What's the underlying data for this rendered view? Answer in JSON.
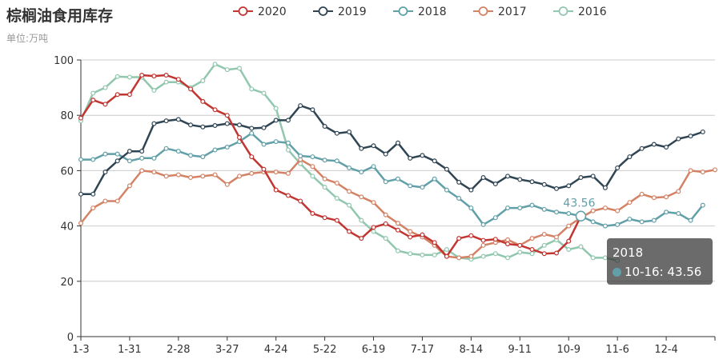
{
  "title": "棕榈油食用库存",
  "subtitle": "单位:万吨",
  "tooltip": {
    "title": "2018",
    "entry": "10-16: 43.56",
    "color": "#61a0a8"
  },
  "highlight_label": "43.56",
  "chart_data": {
    "type": "line",
    "title": "棕榈油食用库存",
    "ylabel": "单位:万吨",
    "xlabel": "",
    "ylim": [
      0,
      100
    ],
    "yticks": [
      0,
      20,
      40,
      60,
      80,
      100
    ],
    "x_tick_labels": [
      "1-3",
      "1-31",
      "2-28",
      "3-27",
      "4-24",
      "5-22",
      "6-19",
      "7-17",
      "8-14",
      "9-11",
      "10-9",
      "11-6",
      "12-4"
    ],
    "legend_position": "top-center",
    "grid": true,
    "x_count": 53,
    "series": [
      {
        "name": "2020",
        "color": "#c23531",
        "values": [
          79,
          85.5,
          84,
          87.5,
          87.5,
          94.5,
          94.2,
          94.5,
          93,
          89.5,
          85,
          82,
          80,
          72,
          65,
          60.5,
          53,
          51,
          49,
          44.5,
          43,
          42,
          38,
          35.5,
          39.5,
          40.8,
          38.5,
          36,
          36.8,
          34,
          29,
          35.5,
          36.5,
          34.8,
          35.2,
          33.5,
          33,
          31.5,
          30,
          30.2,
          34.5,
          43.56
        ]
      },
      {
        "name": "2019",
        "color": "#2f4554",
        "values": [
          51.5,
          51.5,
          59.5,
          63.5,
          67,
          67,
          77,
          78,
          78.5,
          76.5,
          75.8,
          76.3,
          77,
          76.5,
          75.3,
          75.5,
          78.2,
          78.2,
          83.5,
          82,
          76,
          73.5,
          74,
          68,
          69,
          66,
          70,
          64.5,
          65.5,
          63.5,
          60.5,
          55.8,
          53,
          57.5,
          55.2,
          58,
          56.8,
          56,
          55,
          53.5,
          54.5,
          57.5,
          58,
          53.8,
          61,
          65,
          68,
          69.5,
          68.5,
          71.5,
          72.5,
          74
        ]
      },
      {
        "name": "2018",
        "color": "#61a0a8",
        "values": [
          64,
          64,
          66,
          66,
          63.5,
          64.5,
          64.5,
          68,
          67,
          65.5,
          65,
          67.5,
          68.5,
          70.5,
          73.5,
          69.5,
          70.5,
          70,
          65.3,
          65,
          63.8,
          63.5,
          61,
          59.5,
          61.5,
          56,
          57,
          54.5,
          54,
          57,
          53,
          50,
          46.5,
          40.5,
          43,
          46.5,
          46.5,
          47.5,
          46,
          45,
          44.5,
          43.56,
          41.5,
          40,
          40.5,
          42.5,
          41.5,
          42,
          45,
          44.5,
          42,
          47.5
        ]
      },
      {
        "name": "2017",
        "color": "#d48265",
        "values": [
          41,
          46.5,
          49,
          49,
          54.5,
          60,
          59.5,
          58,
          58.5,
          57.5,
          58,
          58.5,
          55,
          58,
          59,
          59.5,
          59.5,
          59,
          64,
          61.5,
          57,
          55.5,
          52.5,
          50.5,
          48.5,
          44,
          41,
          38,
          36,
          33,
          29,
          28.5,
          29,
          33,
          34,
          35,
          33,
          35.5,
          37,
          36,
          40,
          43,
          45.5,
          46.5,
          45.5,
          48.5,
          51.5,
          50.2,
          50.5,
          52.5,
          60,
          59.5,
          60.3
        ]
      },
      {
        "name": "2016",
        "color": "#91c7ae",
        "values": [
          78,
          88,
          90,
          94,
          93.8,
          93.8,
          89,
          92,
          92,
          90,
          92.5,
          98.5,
          96.5,
          97,
          89.5,
          88,
          82.5,
          67.5,
          62.5,
          58,
          54,
          50,
          47.5,
          42,
          38,
          35.5,
          31,
          30,
          29.5,
          29.5,
          31.5,
          28.5,
          28,
          29,
          30,
          28.5,
          30.5,
          30,
          33,
          35,
          31.5,
          32.5,
          28.5,
          28.5,
          27.5
        ]
      }
    ]
  }
}
